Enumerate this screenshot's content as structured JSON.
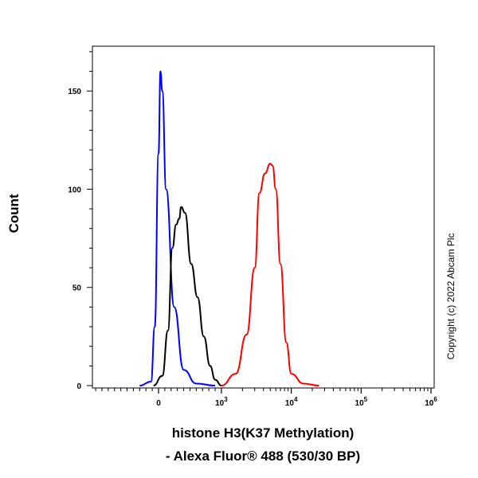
{
  "chart_data": {
    "type": "line",
    "xlabel_line1": "histone H3(K37 Methylation)",
    "xlabel_line2": "- Alexa Fluor® 488 (530/30 BP)",
    "ylabel": "Count",
    "copyright": "Copyright (c) 2022 Abcam Plc",
    "ylim": [
      0,
      172
    ],
    "y_ticks": [
      {
        "value": 0,
        "label": "0"
      },
      {
        "value": 50,
        "label": "50"
      },
      {
        "value": 100,
        "label": "100"
      },
      {
        "value": 150,
        "label": "150"
      }
    ],
    "x_scale": "logicle",
    "x_ticks": [
      {
        "value": 0,
        "label": "0"
      },
      {
        "value": 1000,
        "label": "10^3"
      },
      {
        "value": 10000,
        "label": "10^4"
      },
      {
        "value": 100000,
        "label": "10^5"
      },
      {
        "value": 1000000,
        "label": "10^6"
      }
    ],
    "series": [
      {
        "color": "#0000ff",
        "x": [
          -300,
          -120,
          -60,
          0,
          30,
          60,
          120,
          250,
          400,
          600,
          900
        ],
        "y": [
          0,
          2,
          30,
          118,
          160,
          150,
          100,
          40,
          8,
          1,
          0
        ]
      },
      {
        "color": "#000000",
        "x": [
          -80,
          60,
          150,
          220,
          280,
          330,
          360,
          420,
          520,
          620,
          720,
          820,
          900,
          1000
        ],
        "y": [
          0,
          5,
          28,
          70,
          82,
          85,
          91,
          88,
          62,
          45,
          25,
          10,
          3,
          0
        ]
      },
      {
        "color": "#ff0000",
        "x": [
          1000,
          1600,
          2300,
          3000,
          3500,
          4200,
          5000,
          5400,
          6000,
          7000,
          8500,
          10000,
          15000,
          25000
        ],
        "y": [
          0,
          6,
          26,
          60,
          98,
          108,
          113,
          112,
          100,
          62,
          22,
          6,
          1,
          0
        ]
      }
    ]
  }
}
